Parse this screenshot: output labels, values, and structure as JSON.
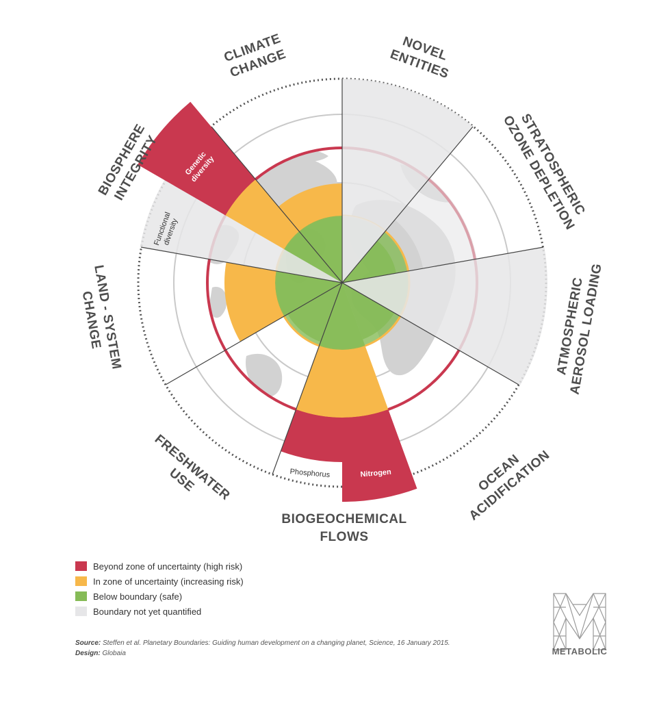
{
  "categories": {
    "climate": [
      "CLIMATE",
      "CHANGE"
    ],
    "novel": [
      "NOVEL",
      "ENTITIES"
    ],
    "ozone": [
      "STRATOSPHERIC",
      "OZONE DEPLETION"
    ],
    "aerosol": [
      "ATMOSPHERIC",
      "AEROSOL LOADING"
    ],
    "ocean": [
      "OCEAN",
      "ACIDIFICATION"
    ],
    "biogeo": [
      "BIOGEOCHEMICAL",
      "FLOWS"
    ],
    "freshwater": [
      "FRESHWATER",
      "USE"
    ],
    "land": [
      "LAND - SYSTEM",
      "CHANGE"
    ],
    "biosphere": [
      "BIOSPHERE",
      "INTEGRITY"
    ]
  },
  "sub_labels": {
    "genetic": [
      "Genetic",
      "diversity"
    ],
    "functional": [
      "Functional",
      "diversity"
    ],
    "phosphorus": "Phosphorus",
    "nitrogen": "Nitrogen"
  },
  "colors": {
    "high_risk": "#c9384f",
    "increasing_risk": "#f7b84a",
    "safe": "#86bb57",
    "not_quantified": "#e6e6e8"
  },
  "legend": [
    {
      "label": "Beyond zone of uncertainty (high risk)",
      "color": "#c9384f"
    },
    {
      "label": "In zone of uncertainty (increasing risk)",
      "color": "#f7b84a"
    },
    {
      "label": "Below boundary (safe)",
      "color": "#86bb57"
    },
    {
      "label": "Boundary not yet quantified",
      "color": "#e6e6e8"
    }
  ],
  "footer": {
    "source_label": "Source:",
    "source_text": "Steffen et al. Planetary Boundaries: Guiding human development on a changing planet, Science, 16 January 2015.",
    "design_label": "Design:",
    "design_text": "Globaia"
  },
  "logo": {
    "word": "METABOLIC"
  }
}
